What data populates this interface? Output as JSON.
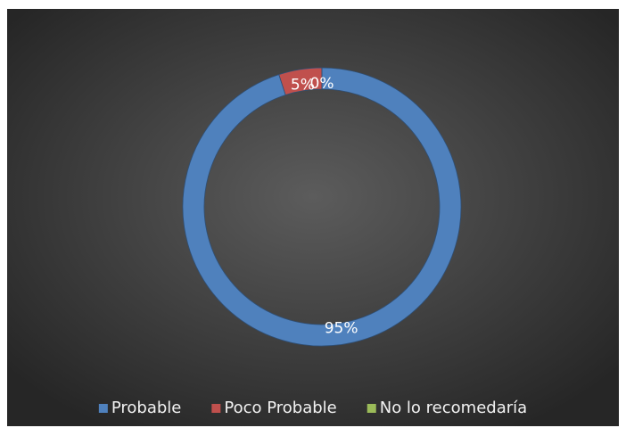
{
  "chart_data": {
    "type": "donut",
    "categories": [
      "Probable",
      "Poco Probable",
      "No lo recomedaría"
    ],
    "values": [
      95,
      5,
      0
    ],
    "value_labels": [
      "95%",
      "5%",
      "0%"
    ],
    "colors": [
      "#4f81bd",
      "#c0504d",
      "#9bbb59"
    ],
    "legend": "bottom"
  }
}
